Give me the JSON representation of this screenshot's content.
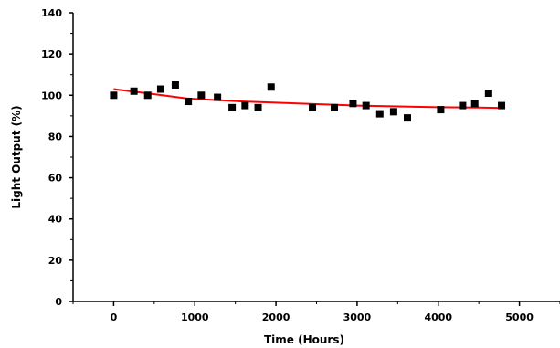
{
  "chart_data": {
    "type": "scatter",
    "xlabel": "Time (Hours)",
    "ylabel": "Light Output (%)",
    "xlim": [
      -500,
      5500
    ],
    "ylim": [
      0,
      140
    ],
    "xticks": [
      0,
      1000,
      2000,
      3000,
      4000,
      5000
    ],
    "yticks": [
      0,
      20,
      40,
      60,
      80,
      100,
      120,
      140
    ],
    "grid": false,
    "series": [
      {
        "kind": "markers",
        "marker": "square",
        "color": "#000000",
        "x": [
          0,
          250,
          420,
          580,
          760,
          920,
          1080,
          1280,
          1460,
          1620,
          1780,
          1940,
          2450,
          2720,
          2950,
          3110,
          3280,
          3450,
          3620,
          4030,
          4300,
          4450,
          4620,
          4780
        ],
        "y": [
          100,
          102,
          100,
          103,
          105,
          97,
          100,
          99,
          94,
          95,
          94,
          104,
          94,
          94,
          96,
          95,
          91,
          92,
          89,
          93,
          95,
          96,
          101,
          95
        ]
      },
      {
        "kind": "line",
        "color": "#ff0000",
        "x": [
          0,
          300,
          600,
          900,
          1200,
          1600,
          2000,
          2500,
          3000,
          3500,
          4000,
          4500,
          4800
        ],
        "y": [
          103,
          101.5,
          100,
          98.5,
          97.8,
          97,
          96.4,
          95.7,
          95,
          94.6,
          94.2,
          94,
          93.8
        ]
      }
    ]
  }
}
